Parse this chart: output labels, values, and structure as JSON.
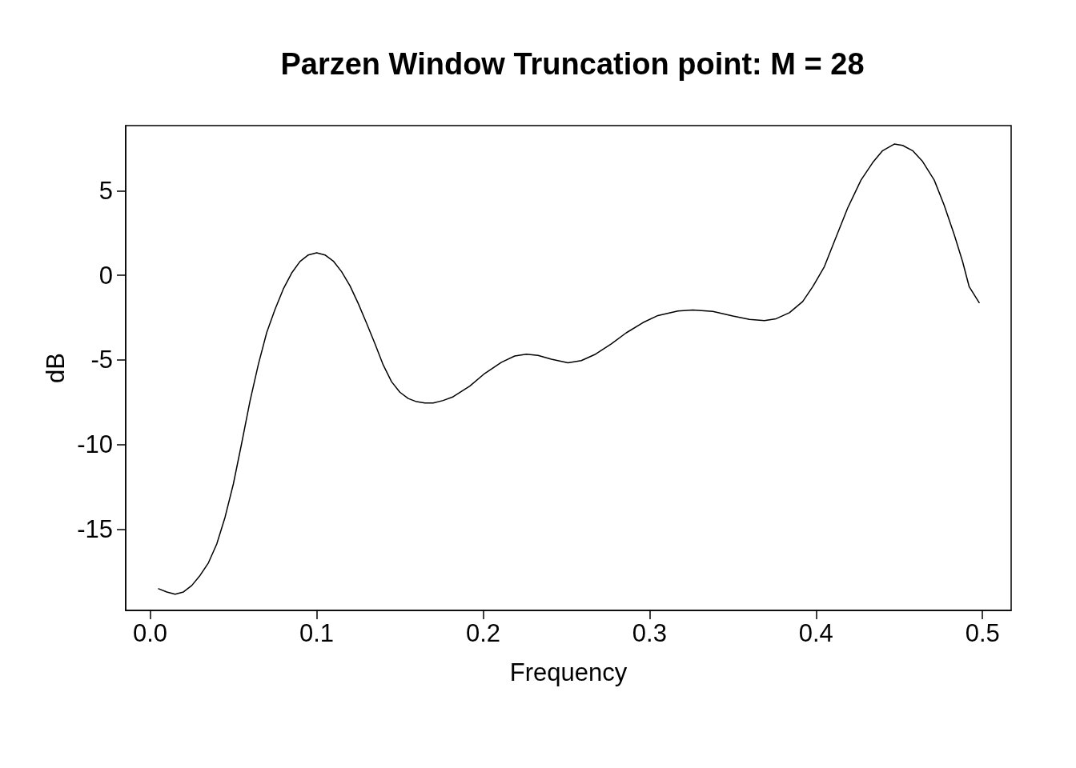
{
  "chart_data": {
    "type": "line",
    "title": "Parzen Window Truncation point: M = 28",
    "xlabel": "Frequency",
    "ylabel": "dB",
    "color": "#000000",
    "x": [
      0.005,
      0.01,
      0.015,
      0.02,
      0.025,
      0.03,
      0.035,
      0.04,
      0.045,
      0.05,
      0.055,
      0.06,
      0.065,
      0.07,
      0.075,
      0.08,
      0.085,
      0.09,
      0.095,
      0.1,
      0.105,
      0.11,
      0.115,
      0.12,
      0.125,
      0.13,
      0.135,
      0.14,
      0.145,
      0.15,
      0.155,
      0.16,
      0.165,
      0.17,
      0.176,
      0.182,
      0.192,
      0.201,
      0.211,
      0.219,
      0.226,
      0.233,
      0.241,
      0.251,
      0.259,
      0.267,
      0.277,
      0.286,
      0.296,
      0.305,
      0.317,
      0.326,
      0.338,
      0.35,
      0.36,
      0.369,
      0.376,
      0.384,
      0.392,
      0.398,
      0.405,
      0.411,
      0.419,
      0.427,
      0.434,
      0.44,
      0.447,
      0.452,
      0.458,
      0.464,
      0.471,
      0.477,
      0.483,
      0.488,
      0.492,
      0.498
    ],
    "values": [
      -18.52,
      -18.71,
      -18.84,
      -18.71,
      -18.33,
      -17.73,
      -16.99,
      -15.88,
      -14.29,
      -12.32,
      -9.91,
      -7.42,
      -5.26,
      -3.39,
      -2.02,
      -0.81,
      0.13,
      0.81,
      1.2,
      1.33,
      1.2,
      0.84,
      0.21,
      -0.62,
      -1.67,
      -2.83,
      -4.04,
      -5.3,
      -6.29,
      -6.91,
      -7.28,
      -7.47,
      -7.55,
      -7.55,
      -7.4,
      -7.18,
      -6.55,
      -5.8,
      -5.14,
      -4.77,
      -4.66,
      -4.74,
      -4.96,
      -5.17,
      -5.04,
      -4.69,
      -4.06,
      -3.4,
      -2.8,
      -2.38,
      -2.11,
      -2.05,
      -2.14,
      -2.41,
      -2.61,
      -2.68,
      -2.57,
      -2.21,
      -1.55,
      -0.68,
      0.51,
      2.0,
      3.97,
      5.62,
      6.65,
      7.36,
      7.75,
      7.67,
      7.36,
      6.72,
      5.62,
      4.13,
      2.4,
      0.82,
      -0.68,
      -1.62
    ],
    "xlim": [
      -0.0147,
      0.5172
    ],
    "ylim": [
      -19.8,
      8.84
    ],
    "xticks": [
      {
        "value": 0,
        "label": "0.0"
      },
      0.1,
      0.2,
      0.3,
      0.4,
      0.5
    ],
    "yticks": [
      -15,
      -10,
      -5,
      0,
      5
    ]
  }
}
